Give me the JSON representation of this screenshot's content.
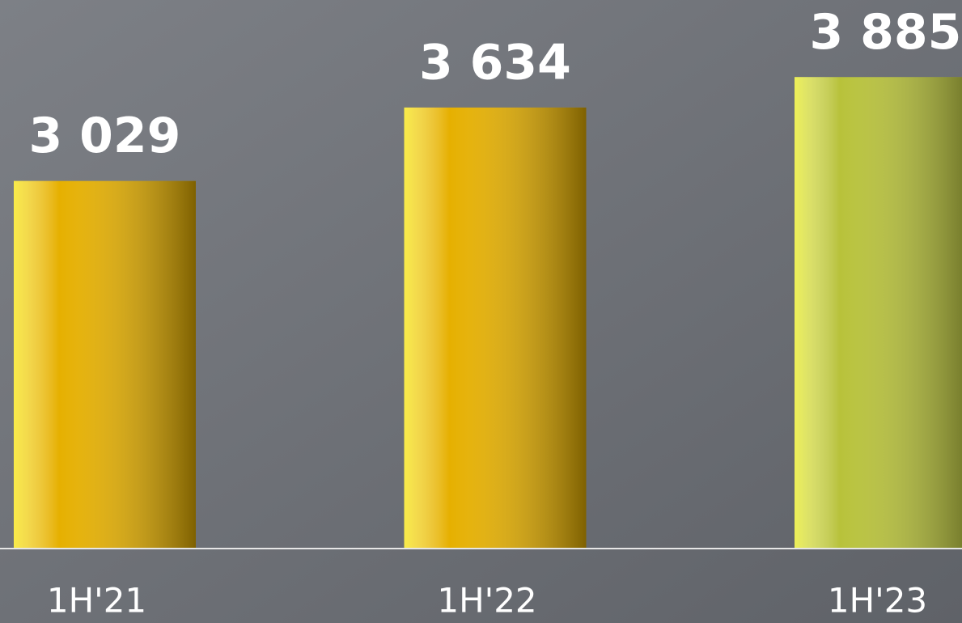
{
  "chart_data": {
    "type": "bar",
    "categories": [
      "1H'21",
      "1H'22",
      "1H'23"
    ],
    "values": [
      3029,
      3634,
      3885
    ],
    "value_labels": [
      "3 029",
      "3 634",
      "3 885"
    ],
    "colors": [
      "#e6b000",
      "#e6b000",
      "#b8c23a"
    ],
    "ylim": [
      0,
      4000
    ],
    "grid": false
  }
}
